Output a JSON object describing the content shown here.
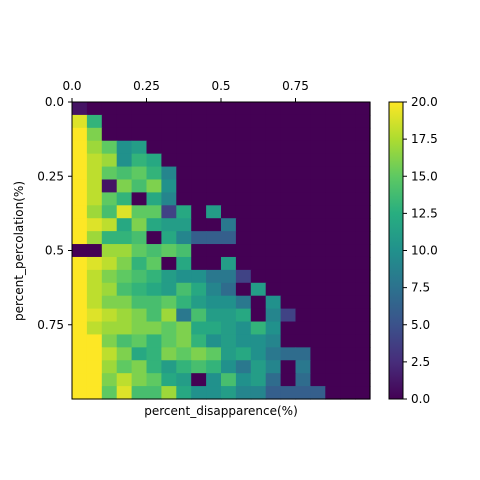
{
  "chart_data": {
    "type": "heatmap",
    "title": "",
    "xlabel": "percent_disapparence(%)",
    "ylabel": "percent_percolation(%)",
    "x_axis_position": "top",
    "x_ticks": [
      {
        "value": 0.0,
        "label": "0.0"
      },
      {
        "value": 0.25,
        "label": "0.25"
      },
      {
        "value": 0.5,
        "label": "0.5"
      },
      {
        "value": 0.75,
        "label": "0.75"
      }
    ],
    "y_ticks": [
      {
        "value": 0.0,
        "label": "0.0"
      },
      {
        "value": 0.25,
        "label": "0.25"
      },
      {
        "value": 0.5,
        "label": "0.5"
      },
      {
        "value": 0.75,
        "label": "0.75"
      }
    ],
    "x_range": [
      0.0,
      1.0
    ],
    "y_range": [
      0.0,
      1.0
    ],
    "colormap": "viridis",
    "colorbar": {
      "min": 0.0,
      "max": 20.0,
      "ticks": [
        {
          "value": 0.0,
          "label": "0.0"
        },
        {
          "value": 2.5,
          "label": "2.5"
        },
        {
          "value": 5.0,
          "label": "5.0"
        },
        {
          "value": 7.5,
          "label": "7.5"
        },
        {
          "value": 10.0,
          "label": "10.0"
        },
        {
          "value": 12.5,
          "label": "12.5"
        },
        {
          "value": 15.0,
          "label": "15.0"
        },
        {
          "value": 17.5,
          "label": "17.5"
        },
        {
          "value": 20.0,
          "label": "20.0"
        }
      ]
    },
    "grid": false,
    "values": [
      [
        1,
        0,
        0,
        0,
        0,
        0,
        0,
        0,
        0,
        0,
        0,
        0,
        0,
        0,
        0,
        0,
        0,
        0,
        0,
        0
      ],
      [
        19,
        13,
        0,
        0,
        0,
        0,
        0,
        0,
        0,
        0,
        0,
        0,
        0,
        0,
        0,
        0,
        0,
        0,
        0,
        0
      ],
      [
        20,
        16,
        0,
        0,
        0,
        0,
        0,
        0,
        0,
        0,
        0,
        0,
        0,
        0,
        0,
        0,
        0,
        0,
        0,
        0
      ],
      [
        20,
        17,
        15,
        10,
        11,
        0,
        0,
        0,
        0,
        0,
        0,
        0,
        0,
        0,
        0,
        0,
        0,
        0,
        0,
        0
      ],
      [
        20,
        18,
        17,
        10,
        13,
        12,
        0,
        0,
        0,
        0,
        0,
        0,
        0,
        0,
        0,
        0,
        0,
        0,
        0,
        0
      ],
      [
        20,
        18,
        15,
        14,
        15,
        13,
        9,
        0,
        0,
        0,
        0,
        0,
        0,
        0,
        0,
        0,
        0,
        0,
        0,
        0
      ],
      [
        20,
        18,
        1,
        16,
        14,
        16,
        10,
        0,
        0,
        0,
        0,
        0,
        0,
        0,
        0,
        0,
        0,
        0,
        0,
        0
      ],
      [
        20,
        18,
        15,
        13,
        0,
        12,
        9,
        0,
        0,
        0,
        0,
        0,
        0,
        0,
        0,
        0,
        0,
        0,
        0,
        0
      ],
      [
        20,
        17,
        14,
        19,
        15,
        15,
        4,
        12,
        0,
        11,
        0,
        0,
        0,
        0,
        0,
        0,
        0,
        0,
        0,
        0
      ],
      [
        20,
        19,
        18,
        12,
        16,
        12,
        11,
        11,
        0,
        0,
        8,
        0,
        0,
        0,
        0,
        0,
        0,
        0,
        0,
        0
      ],
      [
        20,
        17,
        13,
        13,
        14,
        0,
        12,
        9,
        6,
        6,
        6,
        0,
        0,
        0,
        0,
        0,
        0,
        0,
        0,
        0
      ],
      [
        0,
        0,
        17,
        17,
        15,
        14,
        15,
        14,
        0,
        0,
        0,
        0,
        0,
        0,
        0,
        0,
        0,
        0,
        0,
        0
      ],
      [
        20,
        19,
        18,
        16,
        13,
        15,
        0,
        12,
        0,
        0,
        11,
        0,
        0,
        0,
        0,
        0,
        0,
        0,
        0,
        0
      ],
      [
        20,
        18,
        16,
        15,
        14,
        13,
        11,
        10,
        10,
        8,
        8,
        4,
        0,
        0,
        0,
        0,
        0,
        0,
        0,
        0
      ],
      [
        20,
        18,
        17,
        14,
        13,
        12,
        11,
        14,
        12,
        9,
        7,
        0,
        11,
        0,
        0,
        0,
        0,
        0,
        0,
        0
      ],
      [
        20,
        18,
        16,
        16,
        14,
        14,
        15,
        13,
        11,
        10,
        10,
        8,
        0,
        10,
        0,
        0,
        0,
        0,
        0,
        0
      ],
      [
        20,
        19,
        18,
        17,
        16,
        14,
        17,
        8,
        14,
        11,
        11,
        12,
        0,
        9,
        4,
        0,
        0,
        0,
        0,
        0
      ],
      [
        20,
        18,
        17,
        17,
        16,
        16,
        15,
        16,
        12,
        12,
        11,
        10,
        13,
        10,
        0,
        0,
        0,
        0,
        0,
        0
      ],
      [
        20,
        20,
        16,
        14,
        15,
        13,
        15,
        16,
        13,
        10,
        11,
        10,
        10,
        9,
        0,
        0,
        0,
        0,
        0,
        0
      ],
      [
        20,
        20,
        18,
        16,
        12,
        13,
        16,
        15,
        16,
        15,
        11,
        12,
        10,
        8,
        7,
        7,
        0,
        0,
        0,
        0
      ],
      [
        20,
        20,
        17,
        15,
        16,
        13,
        11,
        13,
        14,
        13,
        10,
        8,
        11,
        9,
        0,
        8,
        0,
        0,
        0,
        0
      ],
      [
        20,
        20,
        16,
        18,
        16,
        15,
        12,
        11,
        0,
        10,
        14,
        10,
        11,
        7,
        0,
        7,
        0,
        0,
        0,
        0
      ],
      [
        20,
        20,
        15,
        19,
        14,
        14,
        17,
        12,
        10,
        10,
        11,
        9,
        9,
        6,
        6,
        6,
        6,
        0,
        0,
        0
      ]
    ]
  }
}
